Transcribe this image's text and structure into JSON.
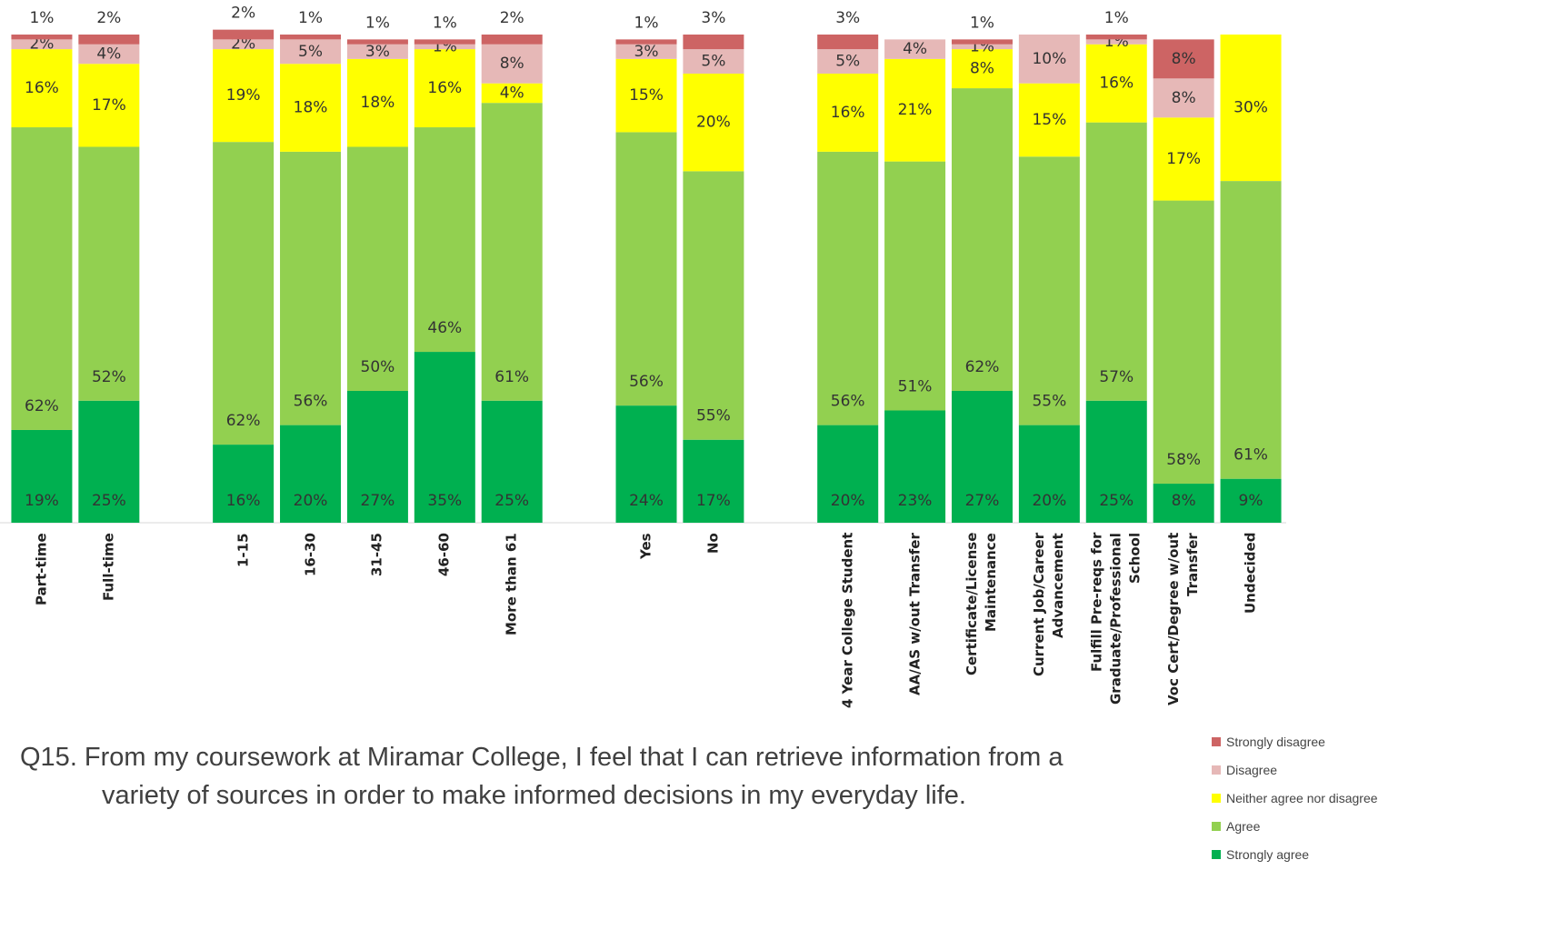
{
  "chart_data": {
    "type": "stacked_bar",
    "title": "Q15. From my coursework at Miramar College, I feel that I can retrieve information from a variety of sources in order to make informed decisions in my everyday life.",
    "categories": [
      "Part-time",
      "Full-time",
      null,
      "1-15",
      "16-30",
      "31-45",
      "46-60",
      "More than 61",
      null,
      "Yes",
      "No",
      null,
      "4 Year College Student",
      "AA/AS w/out Transfer",
      "Certificate/License Maintenance",
      "Current Job/Career Advancement",
      "Fulfill Pre-reqs for Graduate/Professional School",
      "Voc Cert/Degree w/out Transfer",
      "Undecided"
    ],
    "ylim": [
      0,
      100
    ],
    "series": [
      {
        "name": "Strongly agree",
        "color": "#00b050",
        "values": [
          19,
          25,
          null,
          16,
          20,
          27,
          35,
          25,
          null,
          24,
          17,
          null,
          20,
          23,
          27,
          20,
          25,
          8,
          9
        ],
        "value_labels": [
          "19%",
          "25%",
          null,
          "16%",
          "20%",
          "27%",
          "35%",
          "25%",
          null,
          "24%",
          "17%",
          null,
          "20%",
          "23%",
          "27%",
          "20%",
          "25%",
          "8%",
          "9%"
        ]
      },
      {
        "name": "Agree",
        "color": "#92d050",
        "values": [
          62,
          52,
          null,
          62,
          56,
          50,
          46,
          61,
          null,
          56,
          55,
          null,
          56,
          51,
          62,
          55,
          57,
          58,
          61
        ],
        "value_labels": [
          "62%",
          "52%",
          null,
          "62%",
          "56%",
          "50%",
          "46%",
          "61%",
          null,
          "56%",
          "55%",
          null,
          "56%",
          "51%",
          "62%",
          "55%",
          "57%",
          "58%",
          "61%"
        ]
      },
      {
        "name": "Neither agree nor disagree",
        "color": "#ffff00",
        "values": [
          16,
          17,
          null,
          19,
          18,
          18,
          16,
          4,
          null,
          15,
          20,
          null,
          16,
          21,
          8,
          15,
          16,
          17,
          30
        ],
        "value_labels": [
          "16%",
          "17%",
          null,
          "19%",
          "18%",
          "18%",
          "16%",
          "4%",
          null,
          "15%",
          "20%",
          null,
          "16%",
          "21%",
          "8%",
          "15%",
          "16%",
          "17%",
          "30%"
        ]
      },
      {
        "name": "Disagree",
        "color": "#e6b8b7",
        "values": [
          2,
          4,
          null,
          2,
          5,
          3,
          1,
          8,
          null,
          3,
          5,
          null,
          5,
          4,
          1,
          10,
          1,
          8,
          null
        ],
        "value_labels": [
          "2%",
          "4%",
          null,
          "2%",
          "5%",
          "3%",
          "1%",
          "8%",
          null,
          "3%",
          "5%",
          null,
          "5%",
          "4%",
          "1%",
          "10%",
          "1%",
          "8%",
          null
        ]
      },
      {
        "name": "Strongly disagree",
        "color": "#cd6464",
        "values": [
          1,
          2,
          null,
          2,
          1,
          1,
          1,
          2,
          null,
          1,
          3,
          null,
          3,
          null,
          1,
          null,
          1,
          8,
          null
        ],
        "value_labels": [
          "1%",
          "2%",
          null,
          "2%",
          "1%",
          "1%",
          "1%",
          "2%",
          null,
          "1%",
          "3%",
          null,
          "3%",
          null,
          "1%",
          null,
          "1%",
          "8%",
          null
        ]
      }
    ]
  }
}
